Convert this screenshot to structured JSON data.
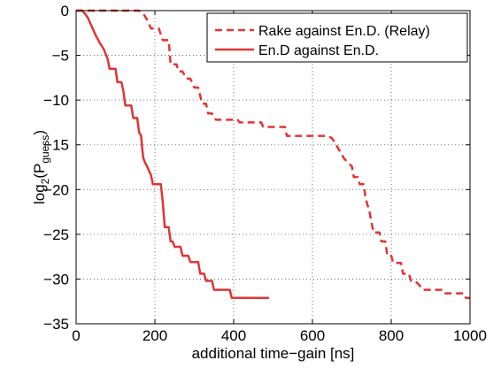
{
  "chart_data": {
    "type": "line",
    "xlabel": "additional time−gain [ns]",
    "ylabel": {
      "prefix": "log",
      "log_base": "2",
      "open": "(P",
      "subscript": "guess",
      "close": ")"
    },
    "xlim": [
      0,
      1000
    ],
    "ylim": [
      -35,
      0
    ],
    "x_ticks": [
      0,
      200,
      400,
      600,
      800,
      1000
    ],
    "x_tick_labels": [
      "0",
      "200",
      "400",
      "600",
      "800",
      "1000"
    ],
    "y_ticks": [
      0,
      -5,
      -10,
      -15,
      -20,
      -25,
      -30,
      -35
    ],
    "y_tick_labels": [
      "0",
      "−5",
      "−10",
      "−15",
      "−20",
      "−25",
      "−30",
      "−35"
    ],
    "grid": true,
    "legend_position": "top-right",
    "series": [
      {
        "name": "Rake against En.D. (Relay)",
        "style": "dashed",
        "color": "#e03535",
        "points": [
          [
            0,
            0
          ],
          [
            160,
            0
          ],
          [
            170,
            -0.3
          ],
          [
            180,
            -1.0
          ],
          [
            190,
            -2.0
          ],
          [
            210,
            -2.0
          ],
          [
            220,
            -3.3
          ],
          [
            235,
            -3.3
          ],
          [
            240,
            -6.0
          ],
          [
            255,
            -6.0
          ],
          [
            260,
            -6.8
          ],
          [
            270,
            -6.8
          ],
          [
            280,
            -7.6
          ],
          [
            290,
            -7.6
          ],
          [
            300,
            -8.6
          ],
          [
            310,
            -8.6
          ],
          [
            320,
            -10.4
          ],
          [
            330,
            -10.4
          ],
          [
            335,
            -11.5
          ],
          [
            345,
            -11.5
          ],
          [
            355,
            -12.2
          ],
          [
            410,
            -12.2
          ],
          [
            415,
            -12.5
          ],
          [
            470,
            -12.5
          ],
          [
            475,
            -13.0
          ],
          [
            530,
            -13.0
          ],
          [
            535,
            -14.0
          ],
          [
            640,
            -14.0
          ],
          [
            650,
            -14.3
          ],
          [
            660,
            -15.0
          ],
          [
            680,
            -16.5
          ],
          [
            690,
            -17.0
          ],
          [
            700,
            -17.4
          ],
          [
            705,
            -18.6
          ],
          [
            715,
            -18.6
          ],
          [
            720,
            -19.4
          ],
          [
            730,
            -19.4
          ],
          [
            735,
            -21.0
          ],
          [
            745,
            -22.5
          ],
          [
            755,
            -24.8
          ],
          [
            770,
            -24.8
          ],
          [
            775,
            -25.8
          ],
          [
            785,
            -25.8
          ],
          [
            790,
            -27.4
          ],
          [
            800,
            -27.4
          ],
          [
            805,
            -28.2
          ],
          [
            825,
            -28.2
          ],
          [
            830,
            -29.4
          ],
          [
            845,
            -29.4
          ],
          [
            850,
            -30.2
          ],
          [
            860,
            -30.2
          ],
          [
            870,
            -30.6
          ],
          [
            880,
            -31.2
          ],
          [
            930,
            -31.2
          ],
          [
            935,
            -31.6
          ],
          [
            985,
            -31.6
          ],
          [
            990,
            -32.1
          ],
          [
            1000,
            -32.1
          ]
        ]
      },
      {
        "name": "En.D against En.D.",
        "style": "solid",
        "color": "#e03535",
        "points": [
          [
            0,
            0
          ],
          [
            15,
            0
          ],
          [
            20,
            -0.2
          ],
          [
            30,
            -0.8
          ],
          [
            40,
            -1.8
          ],
          [
            50,
            -2.8
          ],
          [
            60,
            -3.6
          ],
          [
            70,
            -4.3
          ],
          [
            80,
            -5.4
          ],
          [
            85,
            -6.5
          ],
          [
            100,
            -6.5
          ],
          [
            105,
            -8.0
          ],
          [
            115,
            -8.0
          ],
          [
            120,
            -9.0
          ],
          [
            125,
            -10.6
          ],
          [
            140,
            -10.6
          ],
          [
            145,
            -12.0
          ],
          [
            155,
            -12.0
          ],
          [
            160,
            -13.6
          ],
          [
            165,
            -14.0
          ],
          [
            170,
            -16.4
          ],
          [
            175,
            -17.0
          ],
          [
            180,
            -17.4
          ],
          [
            190,
            -18.4
          ],
          [
            195,
            -19.4
          ],
          [
            215,
            -19.4
          ],
          [
            220,
            -21.4
          ],
          [
            225,
            -24.2
          ],
          [
            235,
            -24.2
          ],
          [
            240,
            -25.8
          ],
          [
            245,
            -25.8
          ],
          [
            250,
            -26.4
          ],
          [
            265,
            -26.4
          ],
          [
            270,
            -27.4
          ],
          [
            285,
            -27.4
          ],
          [
            290,
            -28.1
          ],
          [
            310,
            -28.1
          ],
          [
            315,
            -29.4
          ],
          [
            325,
            -29.4
          ],
          [
            330,
            -30.2
          ],
          [
            345,
            -30.2
          ],
          [
            350,
            -31.2
          ],
          [
            390,
            -31.2
          ],
          [
            395,
            -32.1
          ],
          [
            490,
            -32.1
          ]
        ]
      }
    ]
  }
}
